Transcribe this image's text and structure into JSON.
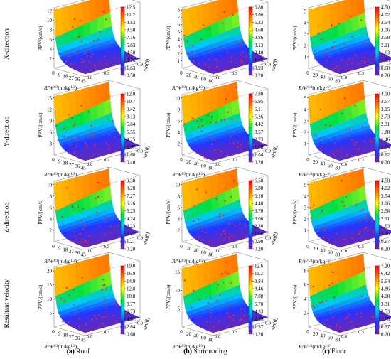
{
  "row_labels": [
    "X-direction",
    "Y-direction",
    "Z-direction",
    "Resultant velocity"
  ],
  "captions": [
    {
      "letter": "(a)",
      "text": " Roof"
    },
    {
      "letter": "(b)",
      "text": " Surrounding"
    },
    {
      "letter": "(c)",
      "text": " Floor"
    }
  ],
  "axis_text": {
    "zlabel": "PPV/(cm/s)",
    "xlabel_main": "R/W",
    "xlabel_tail": "(m/kg",
    "ylabel": "sin(θ)"
  },
  "colors": {
    "surface_gradient": [
      "#7a1fa2",
      "#2233ff",
      "#00c8ff",
      "#00e040",
      "#ffff00",
      "#ff7a00",
      "#ff0000"
    ],
    "points": "#ff2020",
    "frame": "#888888"
  },
  "chart_data": [
    {
      "type": "surface",
      "row": "X-direction",
      "column": "Roof",
      "x_ticks": [
        "0",
        "9",
        "18",
        "27",
        "36",
        "45"
      ],
      "y_ticks": [
        "0.0",
        "0.3",
        "0.6",
        "0.9"
      ],
      "z_ticks": [
        "2",
        "4",
        "6",
        "8",
        "10",
        "12"
      ],
      "colorbar": [
        "0.50",
        "1.83",
        "3.16",
        "4.50",
        "5.83",
        "7.16",
        "8.50",
        "9.83",
        "11.2",
        "12.5"
      ]
    },
    {
      "type": "surface",
      "row": "X-direction",
      "column": "Surrounding",
      "x_ticks": [
        "0",
        "20",
        "40",
        "60",
        "80"
      ],
      "y_ticks": [
        "0.0",
        "0.3",
        "0.6",
        "0.9"
      ],
      "z_ticks": [
        "1",
        "2",
        "3",
        "4",
        "5",
        "6",
        "7",
        "8"
      ],
      "colorbar": [
        "0.20",
        "0.93",
        "1.66",
        "2.40",
        "3.13",
        "3.86",
        "4.60",
        "5.33",
        "6.06",
        "6.80"
      ]
    },
    {
      "type": "surface",
      "row": "X-direction",
      "column": "Floor",
      "x_ticks": [
        "0",
        "20",
        "40",
        "60",
        "80"
      ],
      "y_ticks": [
        "0.0",
        "0.3",
        "0.6",
        "0.9"
      ],
      "z_ticks": [
        "1",
        "2",
        "3",
        "4",
        "5"
      ],
      "colorbar": [
        "0.20",
        "0.68",
        "1.15",
        "1.63",
        "2.11",
        "2.58",
        "3.06",
        "3.54",
        "4.02",
        "4.50"
      ]
    },
    {
      "type": "surface",
      "row": "Y-direction",
      "column": "Roof",
      "x_ticks": [
        "0",
        "9",
        "18",
        "27",
        "36",
        "45"
      ],
      "y_ticks": [
        "0.0",
        "0.3",
        "0.6",
        "0.9"
      ],
      "z_ticks": [
        "3",
        "6",
        "9",
        "12",
        "15"
      ],
      "colorbar": [
        "0.40",
        "1.68",
        "2.97",
        "4.25",
        "5.55",
        "6.84",
        "8.13",
        "9.42",
        "10.7",
        "12.0"
      ]
    },
    {
      "type": "surface",
      "row": "Y-direction",
      "column": "Surrounding",
      "x_ticks": [
        "0",
        "20",
        "40",
        "60",
        "80"
      ],
      "y_ticks": [
        "0.0",
        "0.3",
        "0.6",
        "0.9"
      ],
      "z_ticks": [
        "2",
        "4",
        "6",
        "8",
        "10"
      ],
      "colorbar": [
        "0.20",
        "1.04",
        "1.88",
        "2.73",
        "3.57",
        "4.42",
        "5.26",
        "6.11",
        "6.95",
        "7.80"
      ]
    },
    {
      "type": "surface",
      "row": "Y-direction",
      "column": "Floor",
      "x_ticks": [
        "0",
        "20",
        "40",
        "60",
        "80"
      ],
      "y_ticks": [
        "0.0",
        "0.3",
        "0.6",
        "0.9"
      ],
      "z_ticks": [
        "1",
        "2",
        "3",
        "4",
        "5"
      ],
      "colorbar": [
        "0.20",
        "0.62",
        "1.04",
        "1.46",
        "1.88",
        "2.31",
        "2.73",
        "3.15",
        "3.57",
        "4.00"
      ]
    },
    {
      "type": "surface",
      "row": "Z-direction",
      "column": "Roof",
      "x_ticks": [
        "0",
        "9",
        "18",
        "27",
        "36",
        "45"
      ],
      "y_ticks": [
        "0.0",
        "0.3",
        "0.6",
        "0.9"
      ],
      "z_ticks": [
        "2",
        "4",
        "6",
        "8",
        "10"
      ],
      "colorbar": [
        "0.20",
        "1.21",
        "2.22",
        "3.23",
        "4.24",
        "5.25",
        "6.26",
        "7.27",
        "8.28",
        "9.30"
      ]
    },
    {
      "type": "surface",
      "row": "Z-direction",
      "column": "Surrounding",
      "x_ticks": [
        "0",
        "20",
        "40",
        "60",
        "80"
      ],
      "y_ticks": [
        "0.0",
        "0.3",
        "0.6",
        "0.9"
      ],
      "z_ticks": [
        "2",
        "4",
        "6",
        "8",
        "10"
      ],
      "colorbar": [
        "0.20",
        "0.90",
        "1.60",
        "2.30",
        "3.00",
        "3.70",
        "4.40",
        "5.10",
        "5.80",
        "6.50"
      ]
    },
    {
      "type": "surface",
      "row": "Z-direction",
      "column": "Floor",
      "x_ticks": [
        "0",
        "20",
        "40",
        "60",
        "80"
      ],
      "y_ticks": [
        "0.0",
        "0.3",
        "0.6",
        "0.9"
      ],
      "z_ticks": [
        "1",
        "2",
        "3",
        "4",
        "5"
      ],
      "colorbar": [
        "0.20",
        "0.67",
        "1.15",
        "1.63",
        "2.11",
        "2.58",
        "3.06",
        "3.54",
        "4.02",
        "4.50"
      ]
    },
    {
      "type": "surface",
      "row": "Resultant velocity",
      "column": "Roof",
      "x_ticks": [
        "0",
        "9",
        "18",
        "27",
        "36",
        "45"
      ],
      "y_ticks": [
        "0.0",
        "0.3",
        "0.6",
        "0.9"
      ],
      "z_ticks": [
        "5",
        "10",
        "15",
        "20"
      ],
      "colorbar": [
        "0.60",
        "2.64",
        "4.67",
        "6.73",
        "8.77",
        "10.8",
        "12.8",
        "14.9",
        "16.9",
        "19.0"
      ]
    },
    {
      "type": "surface",
      "row": "Resultant velocity",
      "column": "Surrounding",
      "x_ticks": [
        "0",
        "20",
        "40",
        "60",
        "80"
      ],
      "y_ticks": [
        "0.0",
        "0.3",
        "0.6",
        "0.9"
      ],
      "z_ticks": [
        "5",
        "10",
        "15"
      ],
      "colorbar": [
        "0.20",
        "1.57",
        "2.95",
        "4.33",
        "5.70",
        "7.08",
        "8.46",
        "9.84",
        "11.2",
        "12.6"
      ]
    },
    {
      "type": "surface",
      "row": "Resultant velocity",
      "column": "Floor",
      "x_ticks": [
        "0",
        "20",
        "40",
        "60",
        "80"
      ],
      "y_ticks": [
        "0.0",
        "0.3",
        "0.6",
        "0.9"
      ],
      "z_ticks": [
        "2",
        "4",
        "6",
        "8"
      ],
      "colorbar": [
        "0.20",
        "0.97",
        "1.75",
        "2.53",
        "3.31",
        "4.08",
        "4.86",
        "5.64",
        "6.42",
        "7.20"
      ]
    }
  ]
}
